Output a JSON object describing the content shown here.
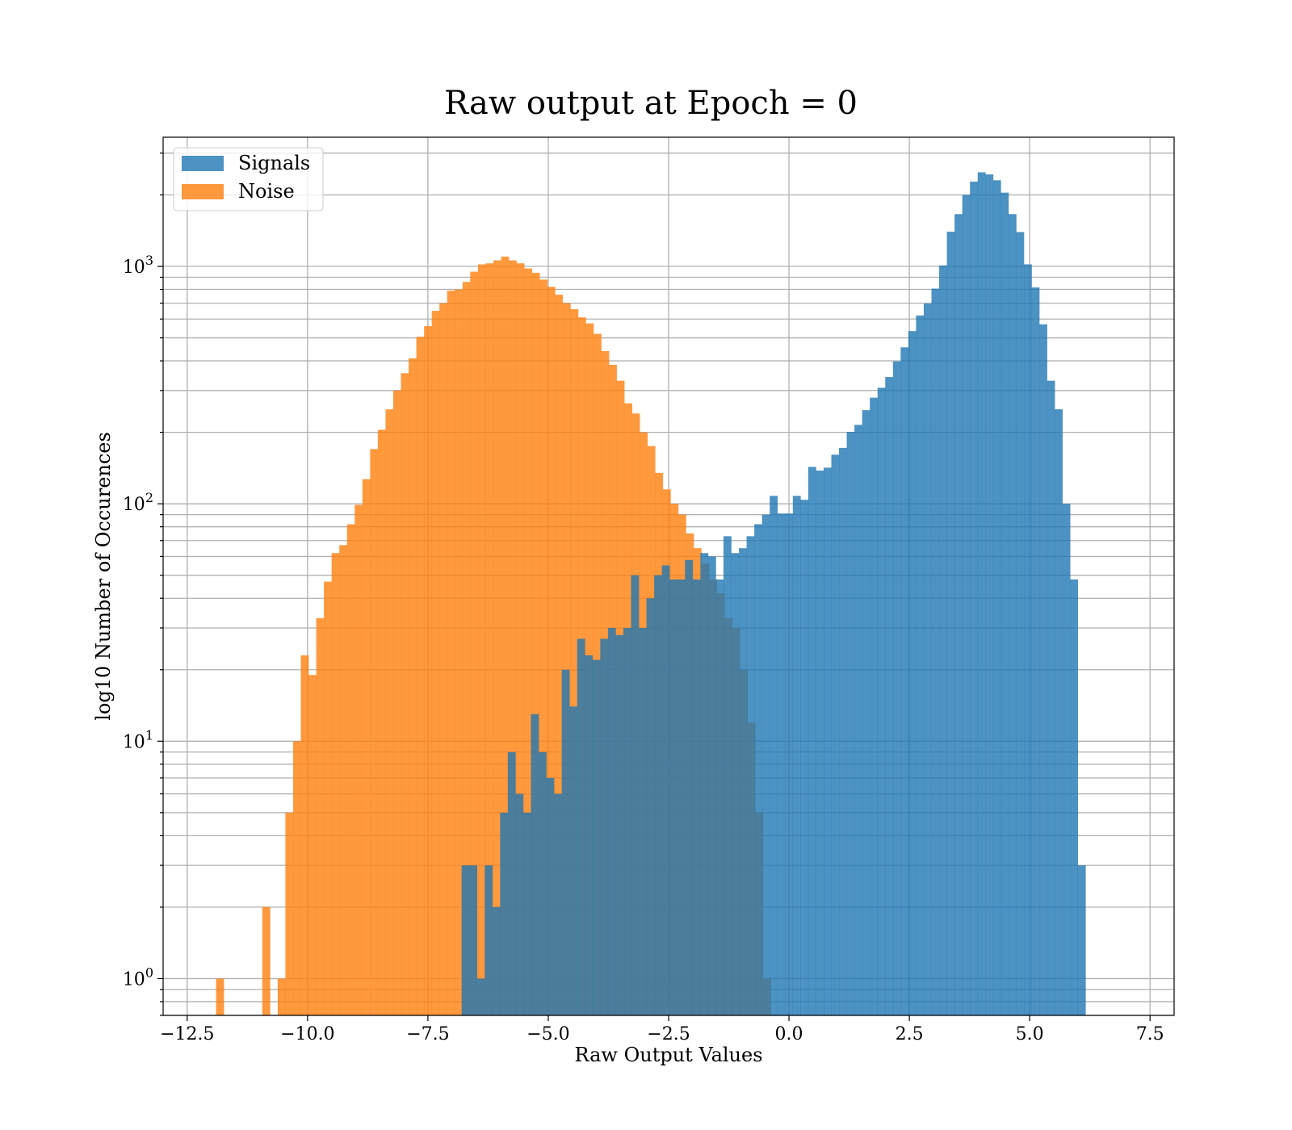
{
  "chart_data": {
    "type": "bar",
    "title": "Raw output at Epoch = 0",
    "xlabel": "Raw Output Values",
    "ylabel": "log10 Number of Occurences",
    "xlim": [
      -13.0,
      8.0
    ],
    "ylim": [
      0.7,
      3500
    ],
    "yscale": "log",
    "grid": true,
    "legend_position": "top-left",
    "x_ticks": [
      -12.5,
      -10.0,
      -7.5,
      -5.0,
      -2.5,
      0.0,
      2.5,
      5.0,
      7.5
    ],
    "x_tick_labels": [
      "−12.5",
      "−10.0",
      "−7.5",
      "−5.0",
      "−2.5",
      "0.0",
      "2.5",
      "5.0",
      "7.5"
    ],
    "y_ticks": [
      1,
      10,
      100,
      1000
    ],
    "y_tick_labels": [
      {
        "base": "10",
        "exp": "0"
      },
      {
        "base": "10",
        "exp": "1"
      },
      {
        "base": "10",
        "exp": "2"
      },
      {
        "base": "10",
        "exp": "3"
      }
    ],
    "series": [
      {
        "name": "Noise",
        "color": "#ff7f0e",
        "bin_start": -11.9,
        "bin_width": 0.16,
        "values": [
          1,
          0,
          0,
          0,
          0,
          0,
          2,
          0,
          1,
          5,
          10,
          23,
          19,
          33,
          47,
          62,
          67,
          82,
          99,
          127,
          170,
          205,
          250,
          300,
          355,
          410,
          505,
          560,
          650,
          700,
          790,
          800,
          860,
          950,
          1020,
          1030,
          1060,
          1100,
          1060,
          1030,
          980,
          940,
          880,
          820,
          760,
          700,
          660,
          610,
          575,
          520,
          440,
          385,
          330,
          265,
          240,
          200,
          175,
          135,
          115,
          100,
          90,
          75,
          65,
          56,
          48,
          42,
          33,
          30,
          20,
          12,
          5,
          1
        ]
      },
      {
        "name": "Signals",
        "color": "#1f77b4",
        "bin_start": -6.8,
        "bin_width": 0.16,
        "values": [
          3,
          3,
          1,
          3,
          2,
          5,
          9,
          6,
          5,
          13,
          9,
          7,
          6,
          20,
          14,
          27,
          23,
          22,
          27,
          30,
          28,
          30,
          50,
          30,
          40,
          50,
          55,
          48,
          48,
          58,
          48,
          62,
          60,
          48,
          73,
          62,
          65,
          73,
          82,
          90,
          108,
          91,
          91,
          108,
          104,
          143,
          138,
          142,
          161,
          172,
          201,
          215,
          248,
          280,
          308,
          342,
          398,
          456,
          534,
          621,
          697,
          806,
          1009,
          1400,
          1660,
          2000,
          2275,
          2490,
          2440,
          2305,
          2045,
          1660,
          1395,
          1020,
          815,
          570,
          330,
          250,
          100,
          48,
          3
        ]
      }
    ]
  }
}
